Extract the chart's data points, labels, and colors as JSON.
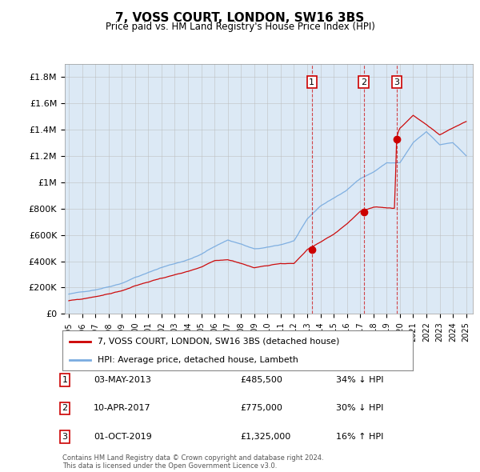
{
  "title": "7, VOSS COURT, LONDON, SW16 3BS",
  "subtitle": "Price paid vs. HM Land Registry's House Price Index (HPI)",
  "hpi_label": "HPI: Average price, detached house, Lambeth",
  "property_label": "7, VOSS COURT, LONDON, SW16 3BS (detached house)",
  "ylim": [
    0,
    1900000
  ],
  "yticks": [
    0,
    200000,
    400000,
    600000,
    800000,
    1000000,
    1200000,
    1400000,
    1600000,
    1800000
  ],
  "ytick_labels": [
    "£0",
    "£200K",
    "£400K",
    "£600K",
    "£800K",
    "£1M",
    "£1.2M",
    "£1.4M",
    "£1.6M",
    "£1.8M"
  ],
  "background_color": "#ffffff",
  "plot_bg_color": "#dce9f5",
  "shaded_region_color": "#dce9f5",
  "grid_color": "#bbbbbb",
  "hpi_color": "#7aace0",
  "property_color": "#cc0000",
  "transactions": [
    {
      "label": "1",
      "date": "03-MAY-2013",
      "price": 485500,
      "price_str": "£485,500",
      "hpi_rel": "34% ↓ HPI",
      "year": 2013.35
    },
    {
      "label": "2",
      "date": "10-APR-2017",
      "price": 775000,
      "price_str": "£775,000",
      "hpi_rel": "30% ↓ HPI",
      "year": 2017.27
    },
    {
      "label": "3",
      "date": "01-OCT-2019",
      "price": 1325000,
      "price_str": "£1,325,000",
      "hpi_rel": "16% ↑ HPI",
      "year": 2019.75
    }
  ],
  "vline_color_12": "#cc0000",
  "vline_color_3": "#cc0000",
  "footer": "Contains HM Land Registry data © Crown copyright and database right 2024.\nThis data is licensed under the Open Government Licence v3.0.",
  "xtick_years": [
    1995,
    1996,
    1997,
    1998,
    1999,
    2000,
    2001,
    2002,
    2003,
    2004,
    2005,
    2006,
    2007,
    2008,
    2009,
    2010,
    2011,
    2012,
    2013,
    2014,
    2015,
    2016,
    2017,
    2018,
    2019,
    2020,
    2021,
    2022,
    2023,
    2024,
    2025
  ],
  "xlim_left": 1994.7,
  "xlim_right": 2025.5
}
